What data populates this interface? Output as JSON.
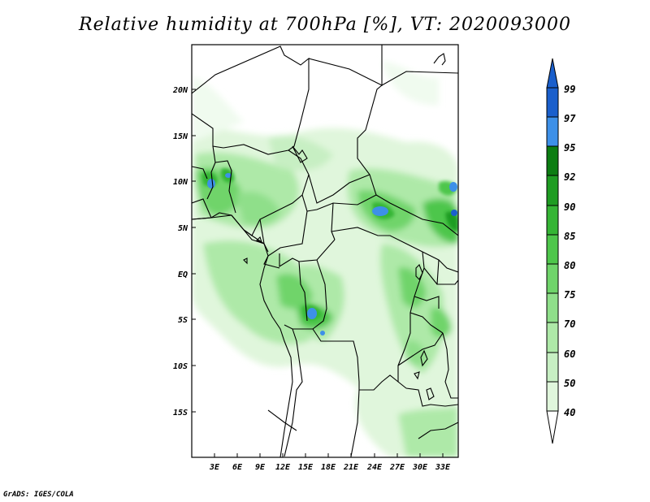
{
  "title": "Relative humidity at 700hPa [%], VT: 2020093000",
  "credit": "GrADS: IGES/COLA",
  "lat_labels": [
    "20N",
    "15N",
    "10N",
    "5N",
    "EQ",
    "5S",
    "10S",
    "15S"
  ],
  "lon_labels": [
    "3E",
    "6E",
    "9E",
    "12E",
    "15E",
    "18E",
    "21E",
    "24E",
    "27E",
    "30E",
    "33E"
  ],
  "colorbar_labels": [
    "40",
    "50",
    "60",
    "70",
    "75",
    "80",
    "85",
    "90",
    "92",
    "95",
    "97",
    "99"
  ],
  "colors": {
    "c40": "#f0fbef",
    "c50": "#e0f6dc",
    "c60": "#c7efc3",
    "c70": "#aee9a8",
    "c75": "#8fdf8a",
    "c80": "#6fd46a",
    "c85": "#4ec64b",
    "c90": "#35b535",
    "c92": "#1e9c22",
    "c95": "#0c7d12",
    "c97": "#3d90e8",
    "c99": "#1a5fcc"
  }
}
